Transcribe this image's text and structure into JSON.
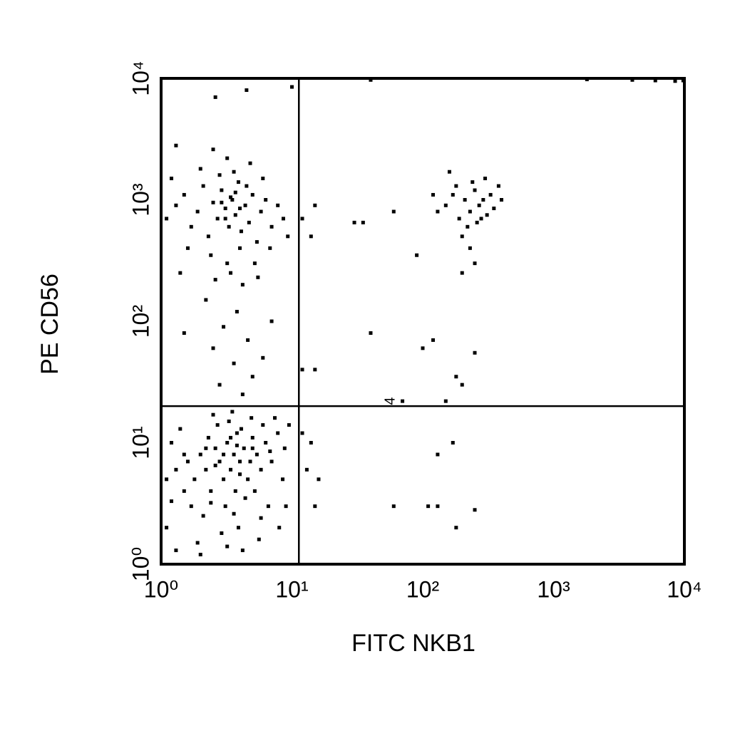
{
  "chart_data": {
    "type": "scatter",
    "x_label": "FITC NKB1",
    "y_label": "PE CD56",
    "annotation": "4",
    "x_scale": "log",
    "y_scale": "log",
    "grid": false,
    "color": "#000000",
    "xlim": [
      1,
      10000
    ],
    "ylim": [
      1,
      10000
    ],
    "xticks": [
      {
        "value": 1,
        "label": "10⁰"
      },
      {
        "value": 10,
        "label": "10¹"
      },
      {
        "value": 100,
        "label": "10²"
      },
      {
        "value": 1000,
        "label": "10³"
      },
      {
        "value": 10000,
        "label": "10⁴"
      }
    ],
    "yticks": [
      {
        "value": 1,
        "label": "10⁰"
      },
      {
        "value": 10,
        "label": "10¹"
      },
      {
        "value": 100,
        "label": "10²"
      },
      {
        "value": 1000,
        "label": "10³"
      },
      {
        "value": 10000,
        "label": "10⁴"
      }
    ],
    "quadrant_x": 11.3,
    "quadrant_y": 20,
    "x": [
      1.1,
      1.3,
      1.5,
      1.6,
      1.8,
      2,
      2.2,
      2.4,
      2.6,
      2.8,
      3,
      3.2,
      3.4,
      3.6,
      3.8,
      4,
      4.3,
      4.6,
      5,
      5.4,
      5.8,
      6.3,
      7,
      7.8,
      8.5,
      1.2,
      1.4,
      1.7,
      2.1,
      2.3,
      2.7,
      3.1,
      3.3,
      3.7,
      4.1,
      4.4,
      4.9,
      5.2,
      6,
      6.6,
      7.4,
      8.8,
      1.1,
      1.9,
      2.9,
      3.9,
      5.6,
      2.5,
      3.5,
      4.8,
      3,
      3.4,
      2.2,
      4,
      2.6,
      3.8,
      1.5,
      5,
      6.8,
      9.5,
      9,
      1.3,
      2,
      3.2,
      4.2,
      2.4,
      3.6,
      5.8,
      1.2,
      8,
      1.1,
      1.3,
      1.5,
      1.7,
      1.9,
      2.1,
      2.3,
      2.5,
      2.7,
      2.9,
      3.1,
      3.3,
      3.5,
      3.7,
      3.9,
      4.1,
      4.4,
      4.7,
      5,
      5.4,
      5.8,
      6.3,
      7,
      7.8,
      8.6,
      9.3,
      1.2,
      1.6,
      2,
      2.4,
      2.8,
      3.2,
      3.6,
      4,
      4.5,
      5.2,
      6,
      6.8,
      1.4,
      2.6,
      3.4,
      4.2,
      5.5,
      2.2,
      3.8,
      3,
      4.6,
      2.5,
      3.6,
      5,
      2.8,
      4.2,
      6,
      1.5,
      7,
      3.2,
      2.5,
      4.8,
      1.3,
      3.4,
      4,
      2.9,
      3.7,
      3.1,
      150,
      170,
      190,
      210,
      230,
      250,
      270,
      290,
      310,
      330,
      350,
      220,
      200,
      260,
      180,
      240,
      300,
      400,
      130,
      120,
      380,
      280,
      230,
      250,
      200,
      160,
      12,
      14,
      15,
      30,
      35,
      60,
      90,
      40,
      12,
      15,
      100,
      180,
      200,
      250,
      150,
      70,
      120,
      14,
      13,
      16,
      110,
      130,
      60,
      180,
      250,
      130,
      170,
      1800,
      4000,
      6000,
      8500,
      9800,
      40,
      10,
      2.6,
      4.5,
      12,
      15
    ],
    "y": [
      5,
      6,
      4,
      7,
      5,
      8,
      6,
      4,
      9,
      7,
      5,
      10,
      6,
      8,
      12,
      7,
      9,
      5,
      11,
      8,
      6,
      10,
      7,
      12,
      5,
      10,
      13,
      3,
      2.5,
      11,
      14,
      3,
      15,
      4,
      13,
      3.5,
      16,
      4,
      14,
      3,
      16,
      9,
      2,
      1.5,
      1.8,
      2,
      1.6,
      17,
      18,
      7,
      8,
      11,
      9,
      5.5,
      6.5,
      9.5,
      8,
      9,
      8.5,
      14,
      3,
      1.3,
      1.2,
      1.4,
      1.3,
      3.2,
      2.6,
      2.4,
      3.3,
      2,
      700,
      900,
      1100,
      600,
      800,
      1300,
      500,
      950,
      700,
      1200,
      850,
      600,
      1000,
      750,
      1400,
      550,
      900,
      650,
      1100,
      450,
      800,
      1000,
      600,
      900,
      700,
      500,
      1500,
      400,
      1800,
      350,
      1600,
      300,
      1700,
      400,
      1300,
      300,
      1500,
      400,
      250,
      220,
      250,
      200,
      230,
      150,
      120,
      90,
      70,
      60,
      45,
      35,
      30,
      25,
      50,
      80,
      100,
      2200,
      2600,
      2000,
      2800,
      1050,
      850,
      950,
      1150,
      700,
      900,
      1100,
      700,
      1000,
      800,
      1200,
      900,
      1000,
      750,
      1100,
      850,
      600,
      500,
      650,
      1300,
      1400,
      1500,
      1000,
      800,
      1100,
      1300,
      700,
      400,
      300,
      250,
      1700,
      700,
      500,
      900,
      650,
      650,
      800,
      350,
      80,
      40,
      40,
      60,
      35,
      30,
      55,
      22,
      22,
      70,
      10,
      6,
      5,
      3,
      3,
      3,
      2,
      2.8,
      8,
      10,
      9800,
      9700,
      9600,
      9500,
      9600,
      9700,
      8500,
      7000,
      8000,
      12,
      3
    ]
  }
}
